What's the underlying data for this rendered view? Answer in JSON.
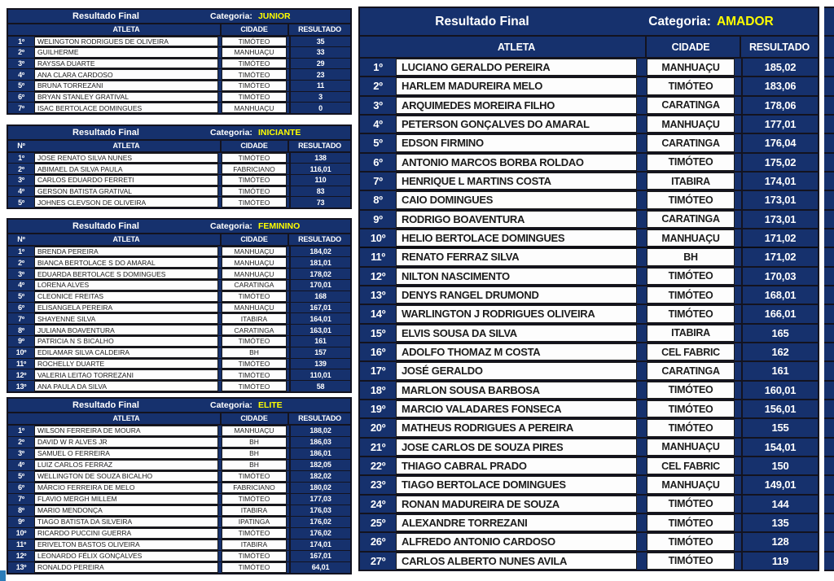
{
  "labels": {
    "title": "Resultado Final",
    "category_label": "Categoria:",
    "col_num": "Nº",
    "col_atleta": "ATLETA",
    "col_cidade": "CIDADE",
    "col_resultado": "RESULTADO"
  },
  "colors": {
    "table_navy": "#16316d",
    "category_yellow": "#ffff00",
    "cell_white": "#fdfdfd",
    "border_black": "#13131f",
    "corner_accent_blue": "#2b7cb9"
  },
  "tables": [
    {
      "category": "JUNIOR",
      "num_label": "",
      "rows": [
        {
          "pos": "1º",
          "atleta": "WELINGTON RODRIGUES DE OLIVEIRA",
          "cidade": "TIMÓTEO",
          "resultado": "35"
        },
        {
          "pos": "2º",
          "atleta": "GUILHERME",
          "cidade": "MANHUAÇU",
          "resultado": "33"
        },
        {
          "pos": "3º",
          "atleta": "RAYSSA DUARTE",
          "cidade": "TIMÓTEO",
          "resultado": "29"
        },
        {
          "pos": "4º",
          "atleta": "ANA CLARA CARDOSO",
          "cidade": "TIMÓTEO",
          "resultado": "23"
        },
        {
          "pos": "5º",
          "atleta": "BRUNA TORREZANI",
          "cidade": "TIMÓTEO",
          "resultado": "11"
        },
        {
          "pos": "6º",
          "atleta": "BRYAN STANLEY GRATIVAL",
          "cidade": "TIMÓTEO",
          "resultado": "3"
        },
        {
          "pos": "7º",
          "atleta": "ISAC BERTOLACE DOMINGUES",
          "cidade": "MANHUAÇU",
          "resultado": "0"
        }
      ]
    },
    {
      "category": "INICIANTE",
      "num_label": "Nº",
      "rows": [
        {
          "pos": "1º",
          "atleta": "JOSE RENATO SILVA NUNES",
          "cidade": "TIMÓTEO",
          "resultado": "138"
        },
        {
          "pos": "2º",
          "atleta": "ABIMAEL DA SILVA PAULA",
          "cidade": "FABRICIANO",
          "resultado": "116,01"
        },
        {
          "pos": "3º",
          "atleta": "CARLOS EDUARDO FERRETI",
          "cidade": "TIMÓTEO",
          "resultado": "110"
        },
        {
          "pos": "4º",
          "atleta": "GERSON BATISTA GRATIVAL",
          "cidade": "TIMÓTEO",
          "resultado": "83"
        },
        {
          "pos": "5º",
          "atleta": "JOHNES CLEVSON DE OLIVEIRA",
          "cidade": "TIMÓTEO",
          "resultado": "73"
        }
      ]
    },
    {
      "category": "FEMININO",
      "num_label": "Nº",
      "rows": [
        {
          "pos": "1º",
          "atleta": "BRENDA PEREIRA",
          "cidade": "MANHUAÇU",
          "resultado": "184,02"
        },
        {
          "pos": "2º",
          "atleta": "BIANCA BERTOLACE S DO AMARAL",
          "cidade": "MANHUAÇU",
          "resultado": "181,01"
        },
        {
          "pos": "3º",
          "atleta": "EDUARDA BERTOLACE S DOMINGUES",
          "cidade": "MANHUAÇU",
          "resultado": "178,02"
        },
        {
          "pos": "4º",
          "atleta": "LORENA ALVES",
          "cidade": "CARATINGA",
          "resultado": "170,01"
        },
        {
          "pos": "5º",
          "atleta": "CLEONICE FREITAS",
          "cidade": "TIMÓTEO",
          "resultado": "168"
        },
        {
          "pos": "6º",
          "atleta": "ELISANGELA PEREIRA",
          "cidade": "MANHUAÇU",
          "resultado": "167,01"
        },
        {
          "pos": "7º",
          "atleta": "SHAYENNE SILVA",
          "cidade": "ITABIRA",
          "resultado": "164,01"
        },
        {
          "pos": "8º",
          "atleta": "JULIANA BOAVENTURA",
          "cidade": "CARATINGA",
          "resultado": "163,01"
        },
        {
          "pos": "9º",
          "atleta": "PATRICIA N S BICALHO",
          "cidade": "TIMÓTEO",
          "resultado": "161"
        },
        {
          "pos": "10º",
          "atleta": "EDILAMAR SILVA CALDEIRA",
          "cidade": "BH",
          "resultado": "157"
        },
        {
          "pos": "11º",
          "atleta": "ROCHELLY DUARTE",
          "cidade": "TIMÓTEO",
          "resultado": "139"
        },
        {
          "pos": "12º",
          "atleta": "VALERIA LEITAO TORREZANI",
          "cidade": "TIMÓTEO",
          "resultado": "110,01"
        },
        {
          "pos": "13º",
          "atleta": "ANA PAULA DA SILVA",
          "cidade": "TIMÓTEO",
          "resultado": "58"
        }
      ]
    },
    {
      "category": "ELITE",
      "num_label": "",
      "rows": [
        {
          "pos": "1º",
          "atleta": "WILSON FERREIRA DE MOURA",
          "cidade": "MANHUAÇU",
          "resultado": "188,02"
        },
        {
          "pos": "2º",
          "atleta": "DAVID W R ALVES JR",
          "cidade": "BH",
          "resultado": "186,03"
        },
        {
          "pos": "3º",
          "atleta": "SAMUEL O FERREIRA",
          "cidade": "BH",
          "resultado": "186,01"
        },
        {
          "pos": "4º",
          "atleta": "LUIZ CARLOS FERRAZ",
          "cidade": "BH",
          "resultado": "182,05"
        },
        {
          "pos": "5º",
          "atleta": "WELLINGTON DE SOUZA BICALHO",
          "cidade": "TIMÓTEO",
          "resultado": "182,02"
        },
        {
          "pos": "6º",
          "atleta": "MÁRCIO FERREIRA DE MELO",
          "cidade": "FABRICIANO",
          "resultado": "180,02"
        },
        {
          "pos": "7º",
          "atleta": "FLAVIO MERGH MILLEM",
          "cidade": "TIMÓTEO",
          "resultado": "177,03"
        },
        {
          "pos": "8º",
          "atleta": "MARIO MENDONÇA",
          "cidade": "ITABIRA",
          "resultado": "176,03"
        },
        {
          "pos": "9º",
          "atleta": "TIAGO BATISTA DA SILVEIRA",
          "cidade": "IPATINGA",
          "resultado": "176,02"
        },
        {
          "pos": "10º",
          "atleta": "RICARDO PUCCINI GUERRA",
          "cidade": "TIMÓTEO",
          "resultado": "176,02"
        },
        {
          "pos": "11º",
          "atleta": "ERIVELTON BASTOS OLIVEIRA",
          "cidade": "ITABIRA",
          "resultado": "174,01"
        },
        {
          "pos": "12º",
          "atleta": "LEONARDO FÉLIX GONÇALVES",
          "cidade": "TIMÓTEO",
          "resultado": "167,01"
        },
        {
          "pos": "13º",
          "atleta": "RONALDO PEREIRA",
          "cidade": "TIMÓTEO",
          "resultado": "64,01"
        }
      ]
    },
    {
      "category": "AMADOR",
      "num_label": "",
      "divider_after": 10,
      "rows": [
        {
          "pos": "1º",
          "atleta": "LUCIANO GERALDO PEREIRA",
          "cidade": "MANHUAÇU",
          "resultado": "185,02"
        },
        {
          "pos": "2º",
          "atleta": "HARLEM MADUREIRA MELO",
          "cidade": "TIMÓTEO",
          "resultado": "183,06"
        },
        {
          "pos": "3º",
          "atleta": "ARQUIMEDES MOREIRA FILHO",
          "cidade": "CARATINGA",
          "resultado": "178,06"
        },
        {
          "pos": "4º",
          "atleta": "PETERSON GONÇALVES DO AMARAL",
          "cidade": "MANHUAÇU",
          "resultado": "177,01"
        },
        {
          "pos": "5º",
          "atleta": "EDSON FIRMINO",
          "cidade": "CARATINGA",
          "resultado": "176,04"
        },
        {
          "pos": "6º",
          "atleta": "ANTONIO MARCOS BORBA ROLDAO",
          "cidade": "TIMÓTEO",
          "resultado": "175,02"
        },
        {
          "pos": "7º",
          "atleta": "HENRIQUE L MARTINS COSTA",
          "cidade": "ITABIRA",
          "resultado": "174,01"
        },
        {
          "pos": "8º",
          "atleta": "CAIO DOMINGUES",
          "cidade": "TIMÓTEO",
          "resultado": "173,01"
        },
        {
          "pos": "9º",
          "atleta": "RODRIGO BOAVENTURA",
          "cidade": "CARATINGA",
          "resultado": "173,01"
        },
        {
          "pos": "10º",
          "atleta": "HELIO BERTOLACE DOMINGUES",
          "cidade": "MANHUAÇU",
          "resultado": "171,02"
        },
        {
          "pos": "11º",
          "atleta": "RENATO FERRAZ SILVA",
          "cidade": "BH",
          "resultado": "171,02"
        },
        {
          "pos": "12º",
          "atleta": "NILTON NASCIMENTO",
          "cidade": "TIMÓTEO",
          "resultado": "170,03"
        },
        {
          "pos": "13º",
          "atleta": "DENYS RANGEL DRUMOND",
          "cidade": "TIMÓTEO",
          "resultado": "168,01"
        },
        {
          "pos": "14º",
          "atleta": "WARLINGTON J RODRIGUES OLIVEIRA",
          "cidade": "TIMÓTEO",
          "resultado": "166,01"
        },
        {
          "pos": "15º",
          "atleta": "ELVIS SOUSA DA SILVA",
          "cidade": "ITABIRA",
          "resultado": "165"
        },
        {
          "pos": "16º",
          "atleta": "ADOLFO THOMAZ M COSTA",
          "cidade": "CEL FABRIC",
          "resultado": "162"
        },
        {
          "pos": "17º",
          "atleta": "JOSÉ GERALDO",
          "cidade": "CARATINGA",
          "resultado": "161"
        },
        {
          "pos": "18º",
          "atleta": "MARLON SOUSA BARBOSA",
          "cidade": "TIMÓTEO",
          "resultado": "160,01"
        },
        {
          "pos": "19º",
          "atleta": "MARCIO VALADARES FONSECA",
          "cidade": "TIMÓTEO",
          "resultado": "156,01"
        },
        {
          "pos": "20º",
          "atleta": "MATHEUS RODRIGUES A PEREIRA",
          "cidade": "TIMÓTEO",
          "resultado": "155"
        },
        {
          "pos": "21º",
          "atleta": "JOSE CARLOS DE SOUZA PIRES",
          "cidade": "MANHUAÇU",
          "resultado": "154,01"
        },
        {
          "pos": "22º",
          "atleta": "THIAGO CABRAL PRADO",
          "cidade": "CEL FABRIC",
          "resultado": "150"
        },
        {
          "pos": "23º",
          "atleta": "TIAGO BERTOLACE DOMINGUES",
          "cidade": "MANHUAÇU",
          "resultado": "149,01"
        },
        {
          "pos": "24º",
          "atleta": "RONAN MADUREIRA DE SOUZA",
          "cidade": "TIMÓTEO",
          "resultado": "144"
        },
        {
          "pos": "25º",
          "atleta": "ALEXANDRE TORREZANI",
          "cidade": "TIMÓTEO",
          "resultado": "135"
        },
        {
          "pos": "26º",
          "atleta": "ALFREDO ANTONIO CARDOSO",
          "cidade": "TIMÓTEO",
          "resultado": "128"
        },
        {
          "pos": "27º",
          "atleta": "CARLOS ALBERTO NUNES AVILA",
          "cidade": "TIMÓTEO",
          "resultado": "119"
        }
      ]
    }
  ]
}
